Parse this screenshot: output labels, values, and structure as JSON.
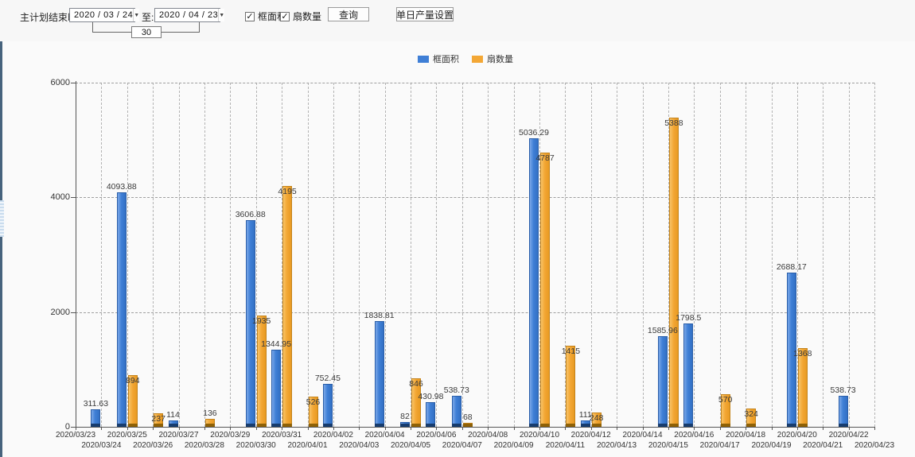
{
  "toolbar": {
    "plan_end_label": "主计划结束时间:",
    "date_from": "2020 / 03 / 24",
    "to_label": "至:",
    "date_to": "2020 / 04 / 23",
    "day_span": "30",
    "checkbox_frame_area_label": "框面积",
    "checkbox_fan_count_label": "扇数量",
    "checkmark": "✓",
    "dropdown_arrow": "▼",
    "query_button": "查询",
    "daily_output_button": "单日产量设置"
  },
  "legend": [
    {
      "label": "框面积",
      "color": "#3f7fd6"
    },
    {
      "label": "扇数量",
      "color": "#f3a735"
    }
  ],
  "chart_data": {
    "type": "bar",
    "title": "",
    "xlabel": "",
    "ylabel": "",
    "ylim": [
      0,
      6000
    ],
    "yticks": [
      0,
      2000,
      4000,
      6000
    ],
    "grid": true,
    "legend_position": "top-center",
    "categories": [
      "2020/03/23",
      "2020/03/24",
      "2020/03/25",
      "2020/03/26",
      "2020/03/27",
      "2020/03/28",
      "2020/03/29",
      "2020/03/30",
      "2020/03/31",
      "2020/04/01",
      "2020/04/02",
      "2020/04/03",
      "2020/04/04",
      "2020/04/05",
      "2020/04/06",
      "2020/04/07",
      "2020/04/08",
      "2020/04/09",
      "2020/04/10",
      "2020/04/11",
      "2020/04/12",
      "2020/04/13",
      "2020/04/14",
      "2020/04/15",
      "2020/04/16",
      "2020/04/17",
      "2020/04/18",
      "2020/04/19",
      "2020/04/20",
      "2020/04/21",
      "2020/04/22",
      "2020/04/23"
    ],
    "series": [
      {
        "name": "框面积",
        "slug": "frame-area",
        "color": "#3f7fd6",
        "values": [
          null,
          311.63,
          4093.88,
          null,
          114,
          null,
          null,
          3606.88,
          1344.95,
          null,
          752.45,
          null,
          1838.81,
          82,
          430.98,
          538.73,
          null,
          null,
          5036.29,
          null,
          111,
          null,
          null,
          1585.96,
          1798.5,
          null,
          null,
          null,
          2688.17,
          null,
          538.73,
          null
        ]
      },
      {
        "name": "扇数量",
        "slug": "fan-count",
        "color": "#f3a735",
        "values": [
          null,
          null,
          894,
          237,
          null,
          136,
          null,
          1935,
          4195,
          526,
          null,
          null,
          null,
          846,
          null,
          68,
          null,
          null,
          4787,
          1415,
          248,
          null,
          null,
          5388,
          null,
          570,
          324,
          null,
          1368,
          null,
          null,
          null
        ]
      }
    ]
  }
}
